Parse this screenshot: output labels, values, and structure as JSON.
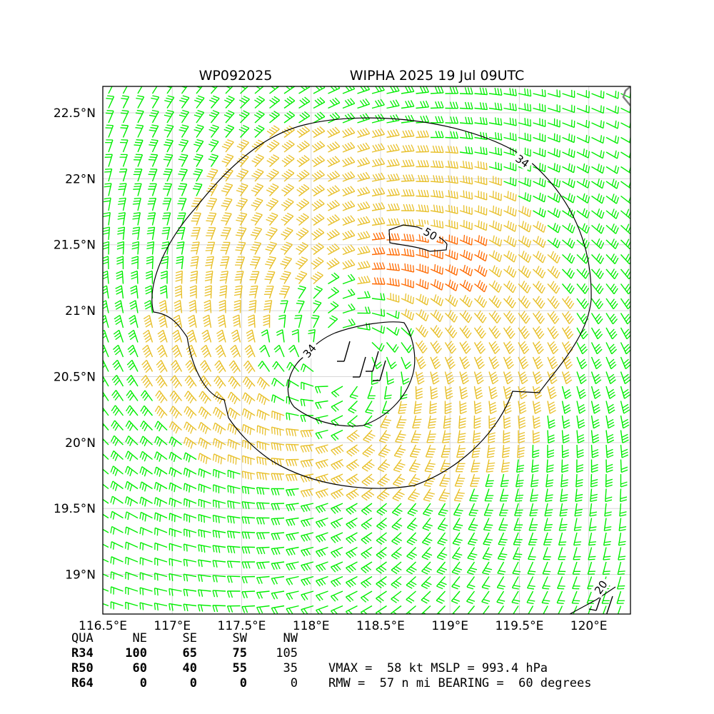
{
  "chart_data": {
    "type": "wind-barb-map",
    "title_left": "WP092025",
    "title_right": "WIPHA 2025 19 Jul 09UTC",
    "x_ticks": [
      "116.5°E",
      "117°E",
      "117.5°E",
      "118°E",
      "118.5°E",
      "119°E",
      "119.5°E",
      "120°E"
    ],
    "x_tick_values": [
      116.5,
      117.0,
      117.5,
      118.0,
      118.5,
      119.0,
      119.5,
      120.0
    ],
    "y_ticks": [
      "22.5°N",
      "22°N",
      "21.5°N",
      "21°N",
      "20.5°N",
      "20°N",
      "19.5°N",
      "19°N"
    ],
    "y_tick_values": [
      22.5,
      22.0,
      21.5,
      21.0,
      20.5,
      20.0,
      19.5,
      19.0
    ],
    "lon_range": [
      116.5,
      120.3
    ],
    "lat_range": [
      18.7,
      22.7
    ],
    "grid": true,
    "storm_center": {
      "lon": 118.2,
      "lat": 20.65
    },
    "contour_labels": [
      "34",
      "50",
      "34",
      "20"
    ],
    "colors": {
      "below_34kt": "#00ee00",
      "34_to_50kt": "#e8c02a",
      "50_to_64kt": "#ff6a00",
      "calm": "#000000",
      "contour": "#000000",
      "grid": "#d8d8d8"
    }
  },
  "table": {
    "header": [
      "QUA",
      "NE",
      "SE",
      "SW",
      "NW"
    ],
    "rows": [
      [
        "R34",
        "100",
        "65",
        "75",
        "105"
      ],
      [
        "R50",
        "60",
        "40",
        "55",
        "35"
      ],
      [
        "R64",
        "0",
        "0",
        "0",
        "0"
      ]
    ]
  },
  "stats": {
    "line1": "VMAX =  58 kt MSLP = 993.4 hPa",
    "line2": "RMW =  57 n mi BEARING =  60 degrees"
  }
}
